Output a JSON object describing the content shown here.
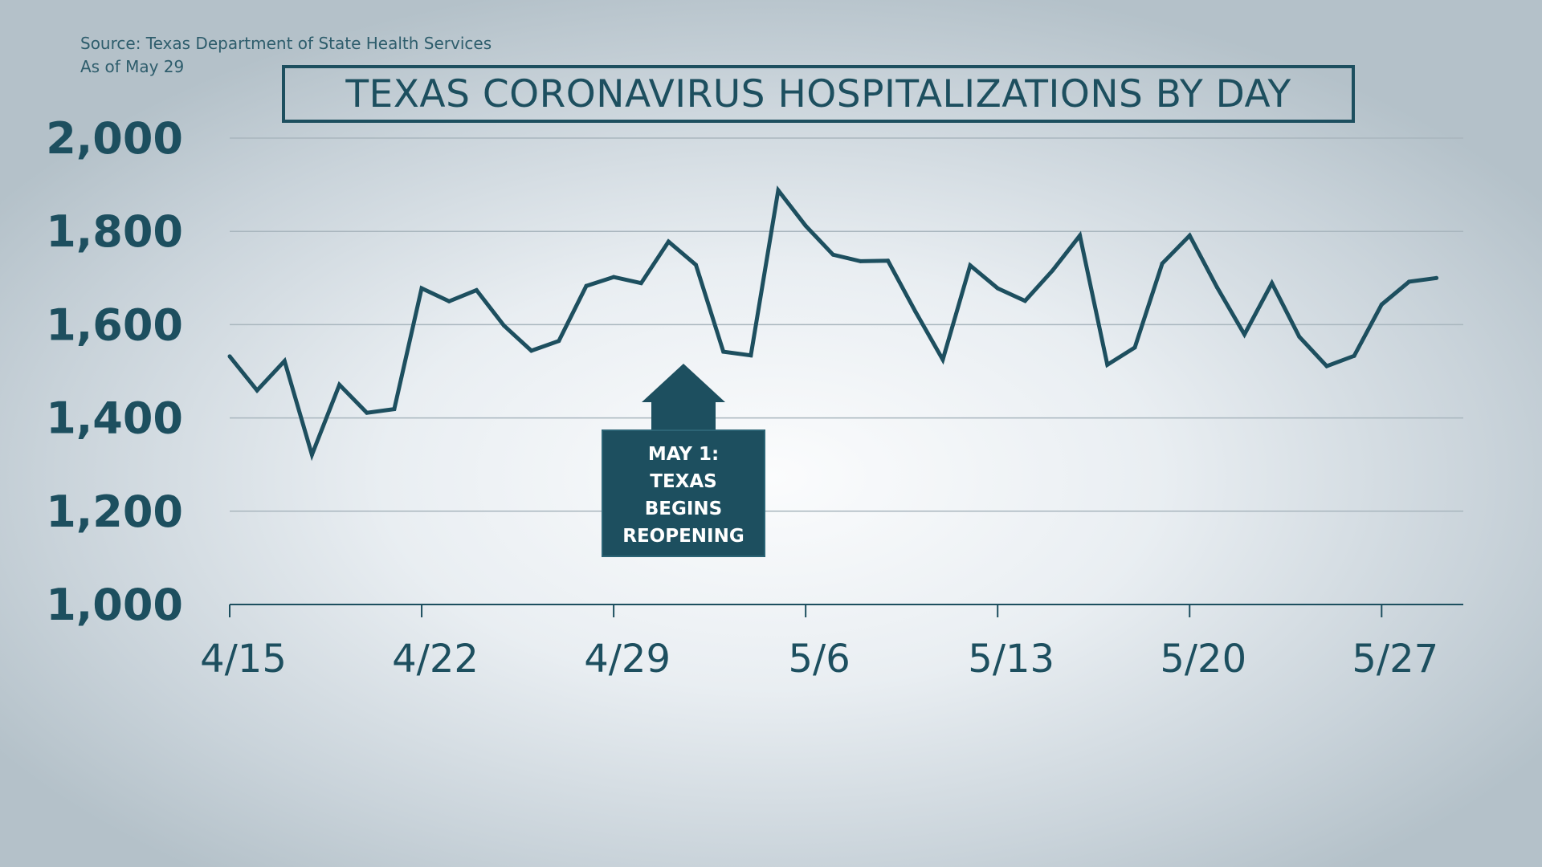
{
  "source": {
    "line1": "Source: Texas Department of State Health Services",
    "line2": "As of May 29"
  },
  "annotation": {
    "lines": [
      "MAY 1:",
      "TEXAS",
      "BEGINS",
      "REOPENING"
    ],
    "date": "2020-05-01"
  },
  "colors": {
    "line": "#1d4f5f",
    "grid": "#a9b6be",
    "annotation_fill": "#1d4f5f",
    "annotation_text": "#ffffff"
  },
  "chart_data": {
    "type": "line",
    "title": "TEXAS CORONAVIRUS HOSPITALIZATIONS BY DAY",
    "xlabel": "",
    "ylabel": "",
    "ylim": [
      1000,
      2000
    ],
    "yticks": [
      1000,
      1200,
      1400,
      1600,
      1800,
      2000
    ],
    "ytick_labels": [
      "1,000",
      "1,200",
      "1,400",
      "1,600",
      "1,800",
      "2,000"
    ],
    "xtick_dates": [
      "2020-04-15",
      "2020-04-22",
      "2020-04-29",
      "2020-05-06",
      "2020-05-13",
      "2020-05-20",
      "2020-05-27"
    ],
    "xtick_labels": [
      "4/15",
      "4/22",
      "4/29",
      "5/6",
      "5/13",
      "5/20",
      "5/27"
    ],
    "grid": true,
    "legend": "none",
    "x": [
      "2020-04-15",
      "2020-04-16",
      "2020-04-17",
      "2020-04-18",
      "2020-04-19",
      "2020-04-20",
      "2020-04-21",
      "2020-04-22",
      "2020-04-23",
      "2020-04-24",
      "2020-04-25",
      "2020-04-26",
      "2020-04-27",
      "2020-04-28",
      "2020-04-29",
      "2020-04-30",
      "2020-05-01",
      "2020-05-02",
      "2020-05-03",
      "2020-05-04",
      "2020-05-05",
      "2020-05-06",
      "2020-05-07",
      "2020-05-08",
      "2020-05-09",
      "2020-05-10",
      "2020-05-11",
      "2020-05-12",
      "2020-05-13",
      "2020-05-14",
      "2020-05-15",
      "2020-05-16",
      "2020-05-17",
      "2020-05-18",
      "2020-05-19",
      "2020-05-20",
      "2020-05-21",
      "2020-05-22",
      "2020-05-23",
      "2020-05-24",
      "2020-05-25",
      "2020-05-26",
      "2020-05-27",
      "2020-05-28",
      "2020-05-29"
    ],
    "series": [
      {
        "values": [
          1532,
          1459,
          1522,
          1321,
          1471,
          1411,
          1419,
          1678,
          1650,
          1674,
          1598,
          1544,
          1565,
          1683,
          1702,
          1689,
          1778,
          1728,
          1542,
          1534,
          1888,
          1812,
          1750,
          1736,
          1737,
          1628,
          1525,
          1727,
          1678,
          1651,
          1716,
          1791,
          1514,
          1551,
          1731,
          1791,
          1680,
          1579,
          1689,
          1574,
          1511,
          1533,
          1643,
          1692,
          1700
        ]
      }
    ]
  }
}
